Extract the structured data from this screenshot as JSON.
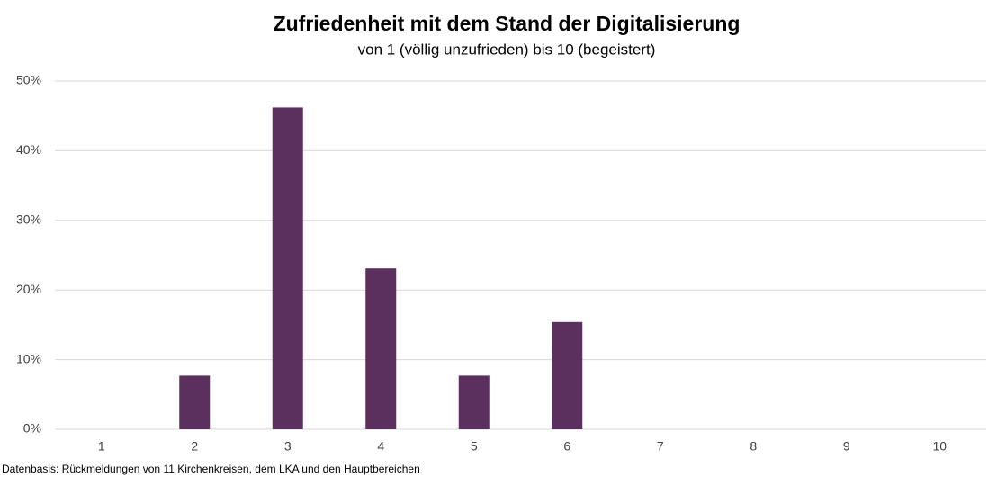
{
  "chart_data": {
    "type": "bar",
    "title": "Zufriedenheit mit dem Stand der Digitalisierung",
    "subtitle": "von 1 (völlig unzufrieden) bis 10 (begeistert)",
    "footnote": "Datenbasis: Rückmeldungen von 11 Kirchenkreisen, dem LKA und den Hauptbereichen",
    "categories": [
      "1",
      "2",
      "3",
      "4",
      "5",
      "6",
      "7",
      "8",
      "9",
      "10"
    ],
    "values": [
      0,
      7.7,
      46.2,
      23.1,
      7.7,
      15.4,
      0,
      0,
      0,
      0
    ],
    "color": "#5b2f5e",
    "ylim": [
      0,
      50
    ],
    "yticks": [
      {
        "value": 0,
        "label": "0%"
      },
      {
        "value": 10,
        "label": "10%"
      },
      {
        "value": 20,
        "label": "20%"
      },
      {
        "value": 30,
        "label": "30%"
      },
      {
        "value": 40,
        "label": "40%"
      },
      {
        "value": 50,
        "label": "50%"
      }
    ],
    "grid": true
  }
}
